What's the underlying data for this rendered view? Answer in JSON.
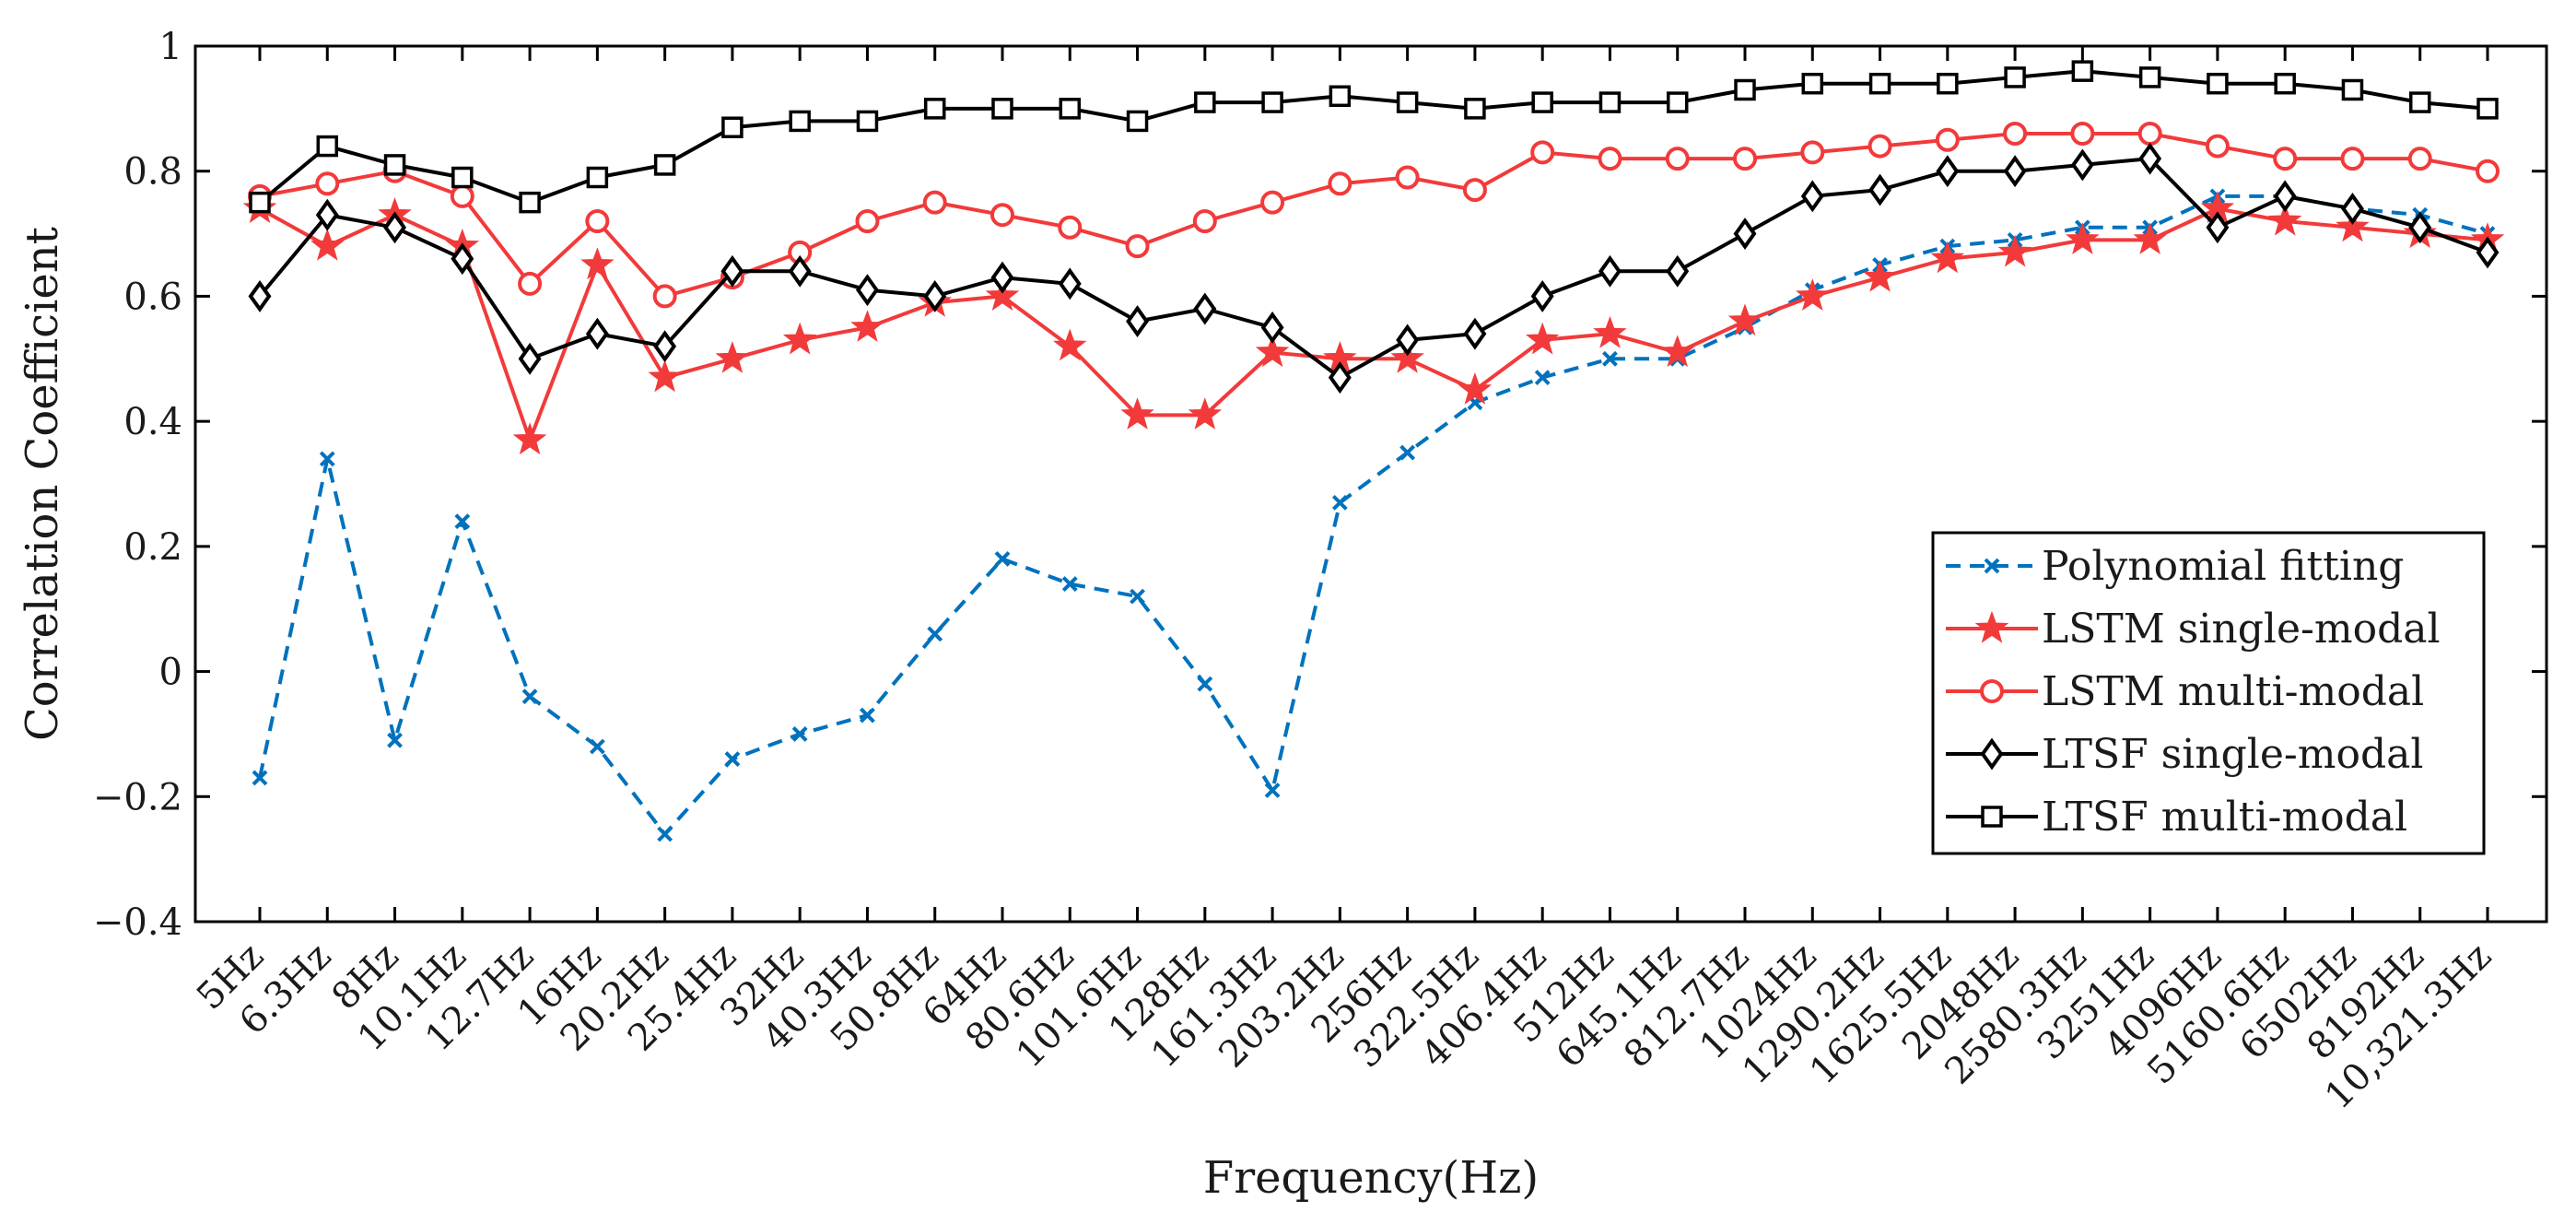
{
  "chart_data": {
    "type": "line",
    "title": "",
    "xlabel": "Frequency(Hz)",
    "ylabel": "Correlation Coefficient",
    "ylim": [
      -0.4,
      1
    ],
    "yticks": [
      -0.4,
      -0.2,
      0,
      0.2,
      0.4,
      0.6,
      0.8,
      1
    ],
    "ytick_labels": [
      "−0.4",
      "−0.2",
      "0",
      "0.2",
      "0.4",
      "0.6",
      "0.8",
      "1"
    ],
    "grid": false,
    "legend_position": "lower-right",
    "categories": [
      "5Hz",
      "6.3Hz",
      "8Hz",
      "10.1Hz",
      "12.7Hz",
      "16Hz",
      "20.2Hz",
      "25.4Hz",
      "32Hz",
      "40.3Hz",
      "50.8Hz",
      "64Hz",
      "80.6Hz",
      "101.6Hz",
      "128Hz",
      "161.3Hz",
      "203.2Hz",
      "256Hz",
      "322.5Hz",
      "406.4Hz",
      "512Hz",
      "645.1Hz",
      "812.7Hz",
      "1024Hz",
      "1290.2Hz",
      "1625.5Hz",
      "2048Hz",
      "2580.3Hz",
      "3251Hz",
      "4096Hz",
      "5160.6Hz",
      "6502Hz",
      "8192Hz",
      "10,321.3Hz"
    ],
    "series": [
      {
        "name": "Polynomial fitting",
        "color": "#0072BD",
        "dash": "dashed",
        "marker": "x",
        "values": [
          -0.17,
          0.34,
          -0.11,
          0.24,
          -0.04,
          -0.12,
          -0.26,
          -0.14,
          -0.1,
          -0.07,
          0.06,
          0.18,
          0.14,
          0.12,
          -0.02,
          -0.19,
          0.27,
          0.35,
          0.43,
          0.47,
          0.5,
          0.5,
          0.55,
          0.61,
          0.65,
          0.68,
          0.69,
          0.71,
          0.71,
          0.76,
          0.76,
          0.74,
          0.73,
          0.7
        ]
      },
      {
        "name": "LSTM single-modal",
        "color": "#F23A3A",
        "dash": "solid",
        "marker": "star",
        "values": [
          0.74,
          0.68,
          0.73,
          0.68,
          0.37,
          0.65,
          0.47,
          0.5,
          0.53,
          0.55,
          0.59,
          0.6,
          0.52,
          0.41,
          0.41,
          0.51,
          0.5,
          0.5,
          0.45,
          0.53,
          0.54,
          0.51,
          0.56,
          0.6,
          0.63,
          0.66,
          0.67,
          0.69,
          0.69,
          0.74,
          0.72,
          0.71,
          0.7,
          0.69
        ]
      },
      {
        "name": "LSTM multi-modal",
        "color": "#F23A3A",
        "dash": "solid",
        "marker": "circle",
        "values": [
          0.76,
          0.78,
          0.8,
          0.76,
          0.62,
          0.72,
          0.6,
          0.63,
          0.67,
          0.72,
          0.75,
          0.73,
          0.71,
          0.68,
          0.72,
          0.75,
          0.78,
          0.79,
          0.77,
          0.83,
          0.82,
          0.82,
          0.82,
          0.83,
          0.84,
          0.85,
          0.86,
          0.86,
          0.86,
          0.84,
          0.82,
          0.82,
          0.82,
          0.8
        ]
      },
      {
        "name": "LTSF single-modal",
        "color": "#000000",
        "dash": "solid",
        "marker": "diamond",
        "values": [
          0.6,
          0.73,
          0.71,
          0.66,
          0.5,
          0.54,
          0.52,
          0.64,
          0.64,
          0.61,
          0.6,
          0.63,
          0.62,
          0.56,
          0.58,
          0.55,
          0.47,
          0.53,
          0.54,
          0.6,
          0.64,
          0.64,
          0.7,
          0.76,
          0.77,
          0.8,
          0.8,
          0.81,
          0.82,
          0.71,
          0.76,
          0.74,
          0.71,
          0.67
        ]
      },
      {
        "name": "LTSF multi-modal",
        "color": "#000000",
        "dash": "solid",
        "marker": "square",
        "values": [
          0.75,
          0.84,
          0.81,
          0.79,
          0.75,
          0.79,
          0.81,
          0.87,
          0.88,
          0.88,
          0.9,
          0.9,
          0.9,
          0.88,
          0.91,
          0.91,
          0.92,
          0.91,
          0.9,
          0.91,
          0.91,
          0.91,
          0.93,
          0.94,
          0.94,
          0.94,
          0.95,
          0.96,
          0.95,
          0.94,
          0.94,
          0.93,
          0.91,
          0.9
        ]
      }
    ]
  }
}
